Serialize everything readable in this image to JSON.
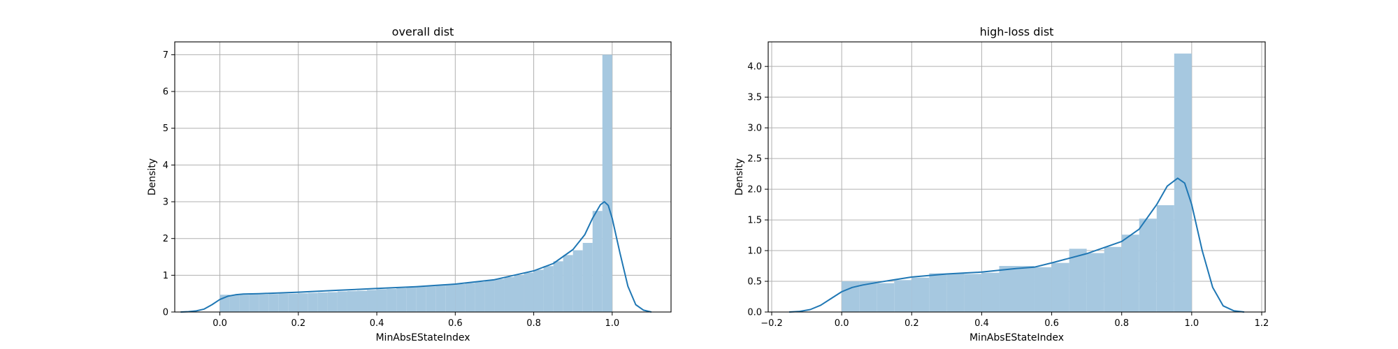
{
  "chart_data": [
    {
      "type": "bar",
      "title": "overall dist",
      "xlabel": "MinAbsEStateIndex",
      "ylabel": "Density",
      "xlim": [
        -0.115,
        1.15
      ],
      "ylim": [
        0,
        7.35
      ],
      "xticks": [
        0.0,
        0.2,
        0.4,
        0.6,
        0.8,
        1.0
      ],
      "xtick_labels": [
        "0.0",
        "0.2",
        "0.4",
        "0.6",
        "0.8",
        "1.0"
      ],
      "yticks": [
        0,
        1,
        2,
        3,
        4,
        5,
        6,
        7
      ],
      "ytick_labels": [
        "0",
        "1",
        "2",
        "3",
        "4",
        "5",
        "6",
        "7"
      ],
      "grid": true,
      "hist_color": "#a6c8e0",
      "kde_color": "#1f77b4",
      "histogram": {
        "bin_edges": [
          0.0,
          0.025,
          0.05,
          0.075,
          0.1,
          0.125,
          0.15,
          0.175,
          0.2,
          0.225,
          0.25,
          0.275,
          0.3,
          0.325,
          0.35,
          0.375,
          0.4,
          0.425,
          0.45,
          0.475,
          0.5,
          0.525,
          0.55,
          0.575,
          0.6,
          0.625,
          0.65,
          0.675,
          0.7,
          0.725,
          0.75,
          0.775,
          0.8,
          0.825,
          0.85,
          0.875,
          0.9,
          0.925,
          0.95,
          0.975,
          1.0
        ],
        "densities": [
          0.47,
          0.46,
          0.47,
          0.48,
          0.48,
          0.49,
          0.5,
          0.5,
          0.51,
          0.52,
          0.53,
          0.54,
          0.56,
          0.57,
          0.58,
          0.6,
          0.62,
          0.63,
          0.65,
          0.67,
          0.69,
          0.7,
          0.72,
          0.74,
          0.76,
          0.79,
          0.82,
          0.86,
          0.9,
          0.95,
          1.0,
          1.07,
          1.15,
          1.25,
          1.38,
          1.55,
          1.68,
          1.88,
          2.75,
          7.0
        ]
      },
      "kde": {
        "x": [
          -0.1,
          -0.08,
          -0.06,
          -0.04,
          -0.02,
          0.0,
          0.02,
          0.04,
          0.06,
          0.1,
          0.2,
          0.3,
          0.4,
          0.5,
          0.6,
          0.7,
          0.8,
          0.85,
          0.9,
          0.93,
          0.95,
          0.97,
          0.98,
          0.99,
          1.0,
          1.02,
          1.04,
          1.06,
          1.08,
          1.1
        ],
        "y": [
          0.0,
          0.01,
          0.03,
          0.08,
          0.2,
          0.34,
          0.43,
          0.47,
          0.49,
          0.5,
          0.54,
          0.59,
          0.64,
          0.69,
          0.76,
          0.88,
          1.12,
          1.32,
          1.7,
          2.1,
          2.55,
          2.92,
          3.0,
          2.9,
          2.55,
          1.6,
          0.7,
          0.2,
          0.05,
          0.0
        ]
      }
    },
    {
      "type": "bar",
      "title": "high-loss dist",
      "xlabel": "MinAbsEStateIndex",
      "ylabel": "Density",
      "xlim": [
        -0.21,
        1.21
      ],
      "ylim": [
        0,
        4.4
      ],
      "xticks": [
        -0.2,
        0.0,
        0.2,
        0.4,
        0.6,
        0.8,
        1.0,
        1.2
      ],
      "xtick_labels": [
        "−0.2",
        "0.0",
        "0.2",
        "0.4",
        "0.6",
        "0.8",
        "1.0",
        "1.2"
      ],
      "yticks": [
        0.0,
        0.5,
        1.0,
        1.5,
        2.0,
        2.5,
        3.0,
        3.5,
        4.0
      ],
      "ytick_labels": [
        "0.0",
        "0.5",
        "1.0",
        "1.5",
        "2.0",
        "2.5",
        "3.0",
        "3.5",
        "4.0"
      ],
      "grid": true,
      "hist_color": "#a6c8e0",
      "kde_color": "#1f77b4",
      "histogram": {
        "bin_edges": [
          0.0,
          0.05,
          0.1,
          0.15,
          0.2,
          0.25,
          0.3,
          0.35,
          0.4,
          0.45,
          0.5,
          0.55,
          0.6,
          0.65,
          0.7,
          0.75,
          0.8,
          0.85,
          0.9,
          0.95,
          1.0
        ],
        "densities": [
          0.5,
          0.5,
          0.47,
          0.52,
          0.56,
          0.63,
          0.63,
          0.62,
          0.64,
          0.75,
          0.75,
          0.73,
          0.8,
          1.03,
          0.96,
          1.06,
          1.26,
          1.52,
          1.74,
          4.21
        ]
      },
      "kde": {
        "x": [
          -0.15,
          -0.12,
          -0.09,
          -0.06,
          -0.03,
          0.0,
          0.03,
          0.06,
          0.1,
          0.2,
          0.3,
          0.4,
          0.5,
          0.55,
          0.6,
          0.7,
          0.8,
          0.85,
          0.9,
          0.93,
          0.96,
          0.98,
          1.0,
          1.03,
          1.06,
          1.09,
          1.12,
          1.15
        ],
        "y": [
          0.0,
          0.01,
          0.04,
          0.11,
          0.22,
          0.33,
          0.4,
          0.44,
          0.48,
          0.57,
          0.62,
          0.65,
          0.71,
          0.73,
          0.8,
          0.95,
          1.15,
          1.35,
          1.75,
          2.05,
          2.18,
          2.1,
          1.75,
          1.0,
          0.4,
          0.1,
          0.02,
          0.0
        ]
      }
    }
  ]
}
